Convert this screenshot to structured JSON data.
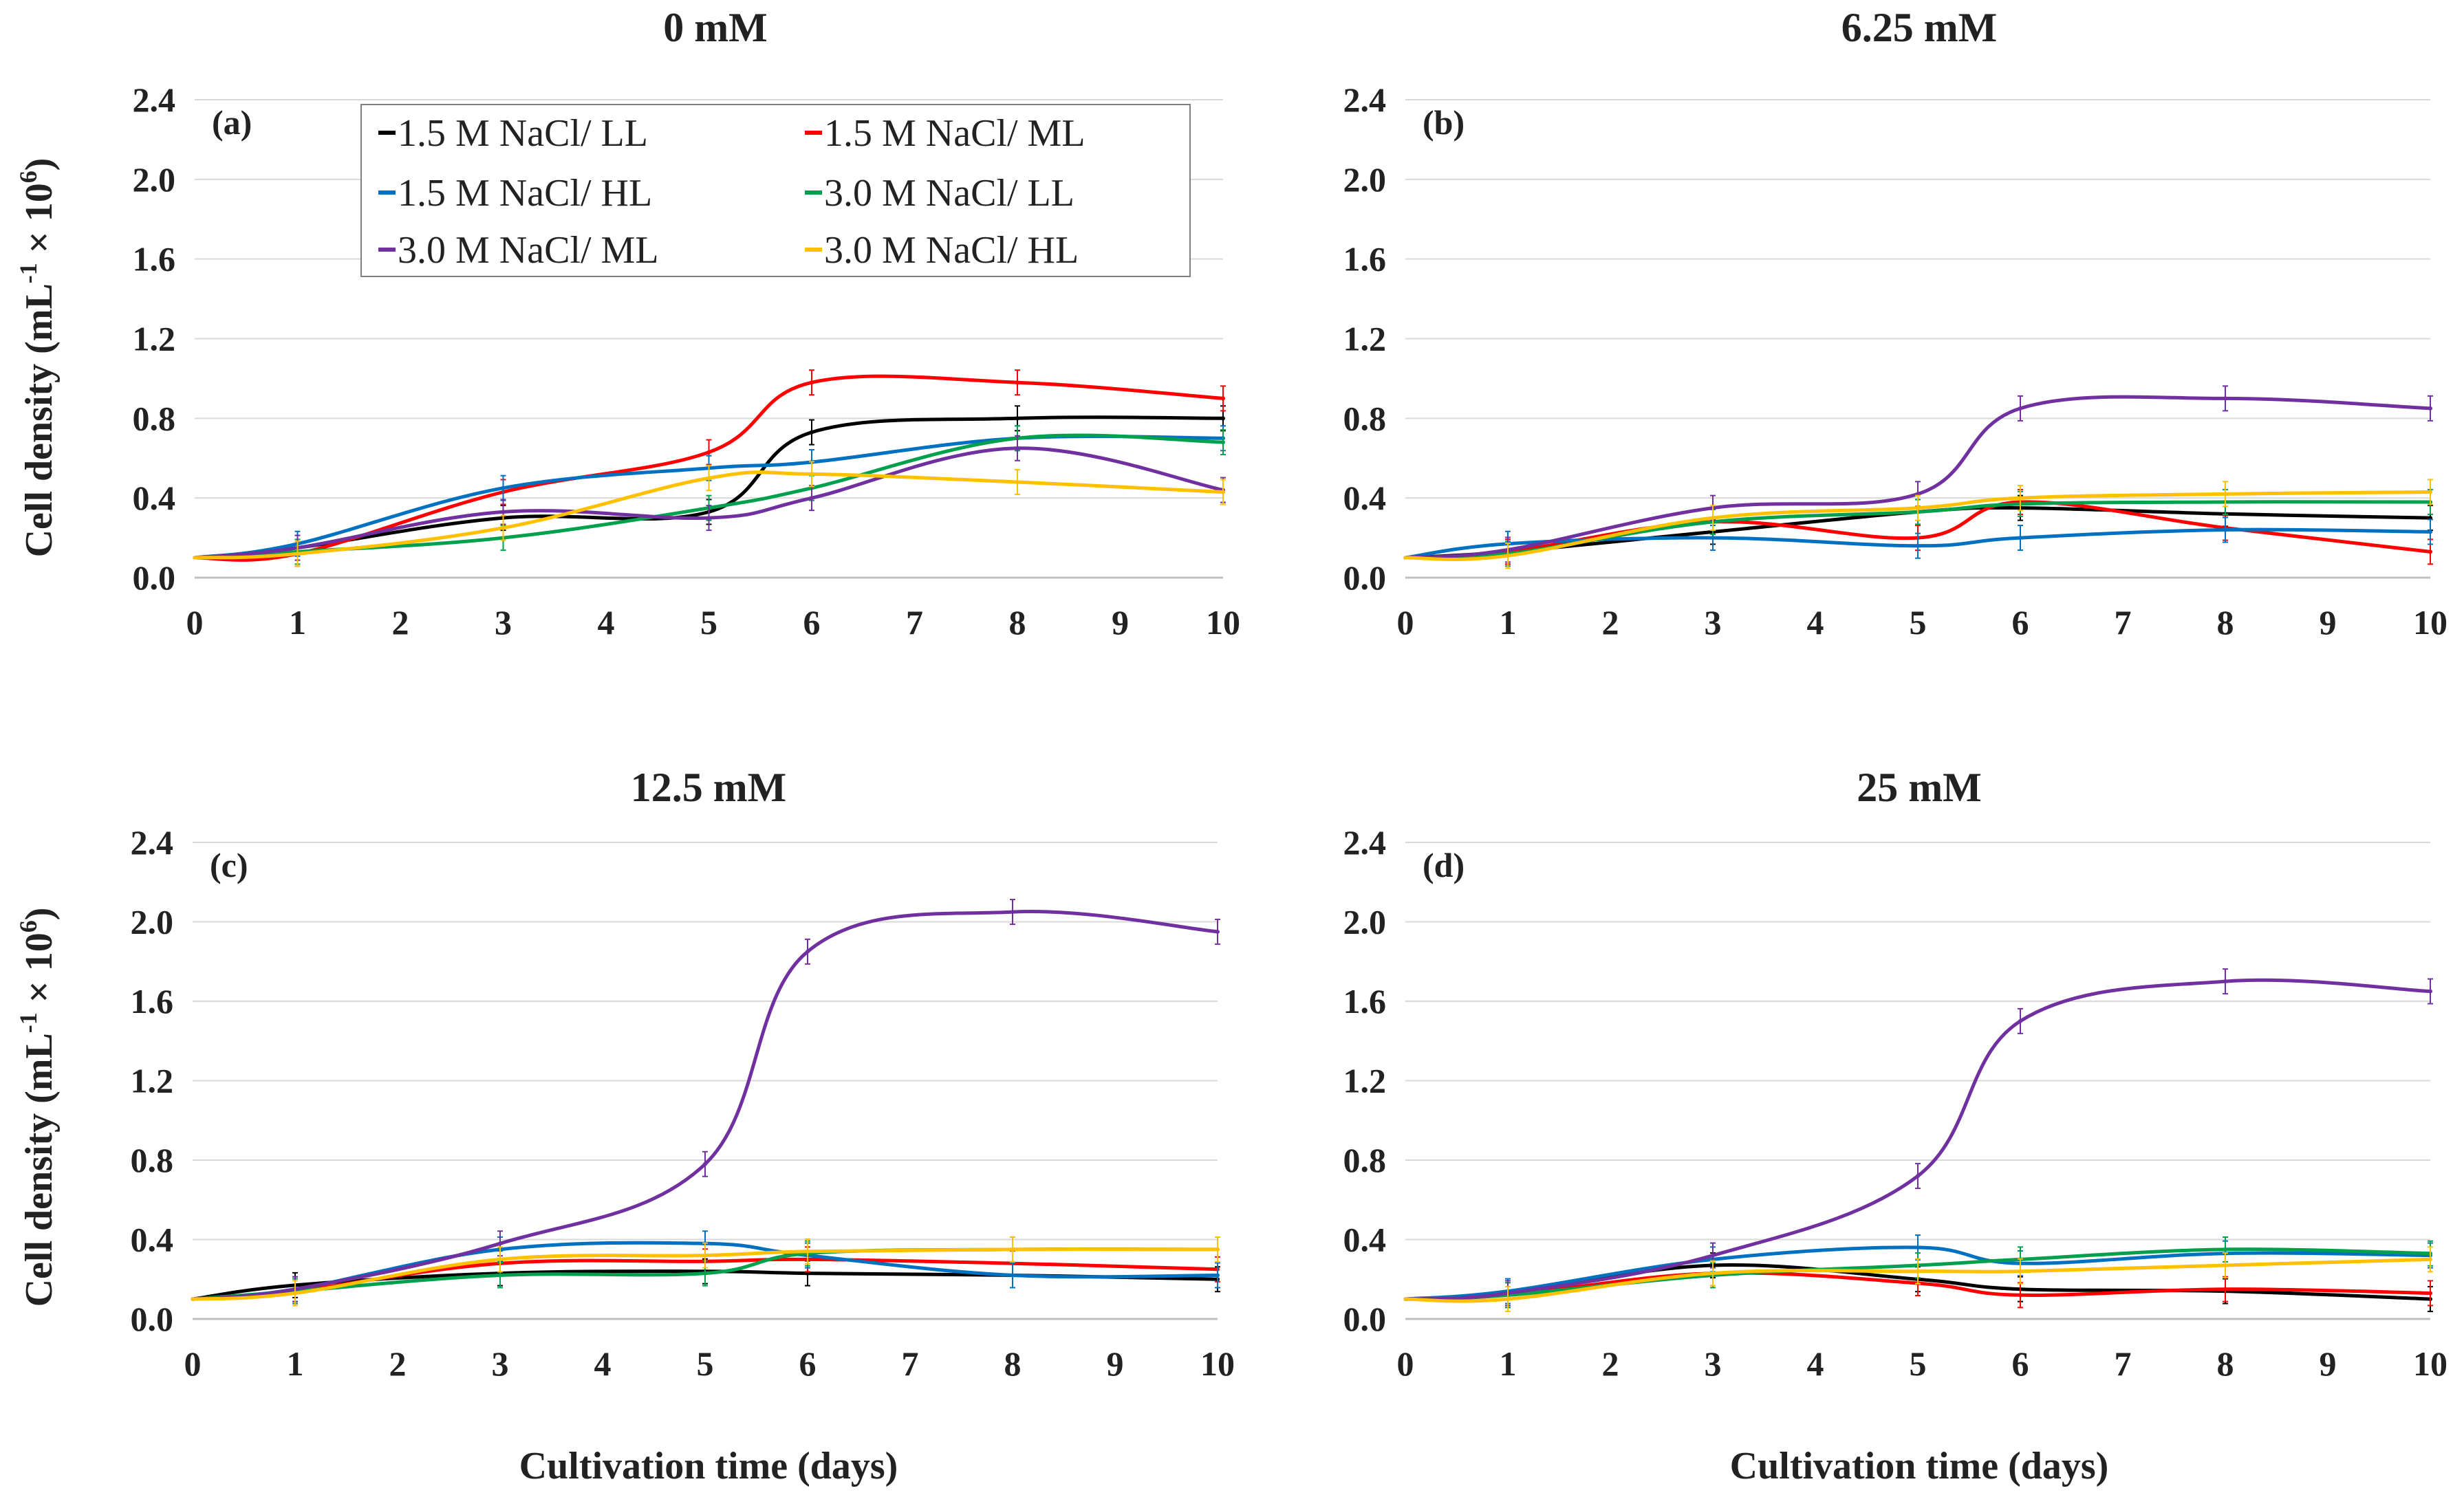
{
  "figure": {
    "xlabel": "Cultivation time (days)",
    "ylabel_main": "Cell density (mL",
    "ylabel_sup1": "-1",
    "ylabel_mid": " × 10",
    "ylabel_sup2": "6",
    "ylabel_end": ")"
  },
  "chart_data": [
    {
      "type": "line",
      "title": "0 mM",
      "panel_label": "(a)",
      "xlabel": "Cultivation time (days)",
      "ylabel": "Cell density (mL-1 × 10^6)",
      "xlim": [
        0,
        10
      ],
      "ylim": [
        0,
        2.4
      ],
      "x": [
        0,
        1,
        3,
        5,
        6,
        8,
        10
      ],
      "xticks": [
        "0",
        "1",
        "2",
        "3",
        "4",
        "5",
        "6",
        "7",
        "8",
        "9",
        "10"
      ],
      "yticks": [
        "0.0",
        "0.4",
        "0.8",
        "1.2",
        "1.6",
        "2.0",
        "2.4"
      ],
      "series": [
        {
          "name": "1.5 M NaCl/ LL",
          "color": "#000000",
          "values": [
            0.1,
            0.15,
            0.3,
            0.33,
            0.73,
            0.8,
            0.8
          ]
        },
        {
          "name": "1.5 M NaCl/ ML",
          "color": "#ff0000",
          "values": [
            0.1,
            0.12,
            0.43,
            0.63,
            0.98,
            0.98,
            0.9
          ]
        },
        {
          "name": "1.5 M NaCl/ HL",
          "color": "#0070c0",
          "values": [
            0.1,
            0.17,
            0.45,
            0.55,
            0.58,
            0.7,
            0.7
          ]
        },
        {
          "name": "3.0 M NaCl/ LL",
          "color": "#00a04c",
          "values": [
            0.1,
            0.13,
            0.2,
            0.35,
            0.45,
            0.7,
            0.68
          ]
        },
        {
          "name": "3.0 M NaCl/ ML",
          "color": "#7030a0",
          "values": [
            0.1,
            0.15,
            0.33,
            0.3,
            0.4,
            0.65,
            0.44
          ]
        },
        {
          "name": "3.0 M NaCl/ HL",
          "color": "#ffc000",
          "values": [
            0.1,
            0.12,
            0.25,
            0.5,
            0.52,
            0.48,
            0.43
          ]
        }
      ]
    },
    {
      "type": "line",
      "title": "6.25 mM",
      "panel_label": "(b)",
      "xlabel": "",
      "ylabel": "",
      "xlim": [
        0,
        10
      ],
      "ylim": [
        0,
        2.4
      ],
      "x": [
        0,
        1,
        3,
        5,
        6,
        8,
        10
      ],
      "xticks": [
        "0",
        "1",
        "2",
        "3",
        "4",
        "5",
        "6",
        "7",
        "8",
        "9",
        "10"
      ],
      "yticks": [
        "0.0",
        "0.4",
        "0.8",
        "1.2",
        "1.6",
        "2.0",
        "2.4"
      ],
      "series": [
        {
          "name": "1.5 M NaCl/ LL",
          "color": "#000000",
          "values": [
            0.1,
            0.13,
            0.23,
            0.33,
            0.35,
            0.32,
            0.3
          ]
        },
        {
          "name": "1.5 M NaCl/ ML",
          "color": "#ff0000",
          "values": [
            0.1,
            0.13,
            0.28,
            0.2,
            0.38,
            0.25,
            0.13
          ]
        },
        {
          "name": "1.5 M NaCl/ HL",
          "color": "#0070c0",
          "values": [
            0.1,
            0.17,
            0.2,
            0.16,
            0.2,
            0.24,
            0.23
          ]
        },
        {
          "name": "3.0 M NaCl/ LL",
          "color": "#00a04c",
          "values": [
            0.1,
            0.12,
            0.28,
            0.33,
            0.37,
            0.38,
            0.38
          ]
        },
        {
          "name": "3.0 M NaCl/ ML",
          "color": "#7030a0",
          "values": [
            0.1,
            0.14,
            0.35,
            0.42,
            0.85,
            0.9,
            0.85
          ]
        },
        {
          "name": "3.0 M NaCl/ HL",
          "color": "#ffc000",
          "values": [
            0.1,
            0.11,
            0.3,
            0.35,
            0.4,
            0.42,
            0.43
          ]
        }
      ]
    },
    {
      "type": "line",
      "title": "12.5 mM",
      "panel_label": "(c)",
      "xlabel": "Cultivation time (days)",
      "ylabel": "Cell density (mL-1 × 10^6)",
      "xlim": [
        0,
        10
      ],
      "ylim": [
        0,
        2.4
      ],
      "x": [
        0,
        1,
        3,
        5,
        6,
        8,
        10
      ],
      "xticks": [
        "0",
        "1",
        "2",
        "3",
        "4",
        "5",
        "6",
        "7",
        "8",
        "9",
        "10"
      ],
      "yticks": [
        "0.0",
        "0.4",
        "0.8",
        "1.2",
        "1.6",
        "2.0",
        "2.4"
      ],
      "series": [
        {
          "name": "1.5 M NaCl/ LL",
          "color": "#000000",
          "values": [
            0.1,
            0.17,
            0.23,
            0.24,
            0.23,
            0.22,
            0.2
          ]
        },
        {
          "name": "1.5 M NaCl/ ML",
          "color": "#ff0000",
          "values": [
            0.1,
            0.14,
            0.28,
            0.29,
            0.3,
            0.28,
            0.25
          ]
        },
        {
          "name": "1.5 M NaCl/ HL",
          "color": "#0070c0",
          "values": [
            0.1,
            0.15,
            0.35,
            0.38,
            0.32,
            0.22,
            0.22
          ]
        },
        {
          "name": "3.0 M NaCl/ LL",
          "color": "#00a04c",
          "values": [
            0.1,
            0.14,
            0.22,
            0.23,
            0.33,
            0.35,
            0.35
          ]
        },
        {
          "name": "3.0 M NaCl/ ML",
          "color": "#7030a0",
          "values": [
            0.1,
            0.15,
            0.38,
            0.78,
            1.85,
            2.05,
            1.95
          ]
        },
        {
          "name": "3.0 M NaCl/ HL",
          "color": "#ffc000",
          "values": [
            0.1,
            0.13,
            0.3,
            0.32,
            0.34,
            0.35,
            0.35
          ]
        }
      ]
    },
    {
      "type": "line",
      "title": "25 mM",
      "panel_label": "(d)",
      "xlabel": "Cultivation time (days)",
      "ylabel": "",
      "xlim": [
        0,
        10
      ],
      "ylim": [
        0,
        2.4
      ],
      "x": [
        0,
        1,
        3,
        5,
        6,
        8,
        10
      ],
      "xticks": [
        "0",
        "1",
        "2",
        "3",
        "4",
        "5",
        "6",
        "7",
        "8",
        "9",
        "10"
      ],
      "yticks": [
        "0.0",
        "0.4",
        "0.8",
        "1.2",
        "1.6",
        "2.0",
        "2.4"
      ],
      "series": [
        {
          "name": "1.5 M NaCl/ LL",
          "color": "#000000",
          "values": [
            0.1,
            0.13,
            0.27,
            0.2,
            0.15,
            0.14,
            0.1
          ]
        },
        {
          "name": "1.5 M NaCl/ ML",
          "color": "#ff0000",
          "values": [
            0.1,
            0.12,
            0.23,
            0.18,
            0.12,
            0.15,
            0.13
          ]
        },
        {
          "name": "1.5 M NaCl/ HL",
          "color": "#0070c0",
          "values": [
            0.1,
            0.14,
            0.3,
            0.36,
            0.28,
            0.33,
            0.32
          ]
        },
        {
          "name": "3.0 M NaCl/ LL",
          "color": "#00a04c",
          "values": [
            0.1,
            0.12,
            0.22,
            0.27,
            0.3,
            0.35,
            0.33
          ]
        },
        {
          "name": "3.0 M NaCl/ ML",
          "color": "#7030a0",
          "values": [
            0.1,
            0.13,
            0.32,
            0.72,
            1.5,
            1.7,
            1.65
          ]
        },
        {
          "name": "3.0 M NaCl/ HL",
          "color": "#ffc000",
          "values": [
            0.1,
            0.1,
            0.23,
            0.24,
            0.24,
            0.27,
            0.3
          ]
        }
      ]
    }
  ]
}
